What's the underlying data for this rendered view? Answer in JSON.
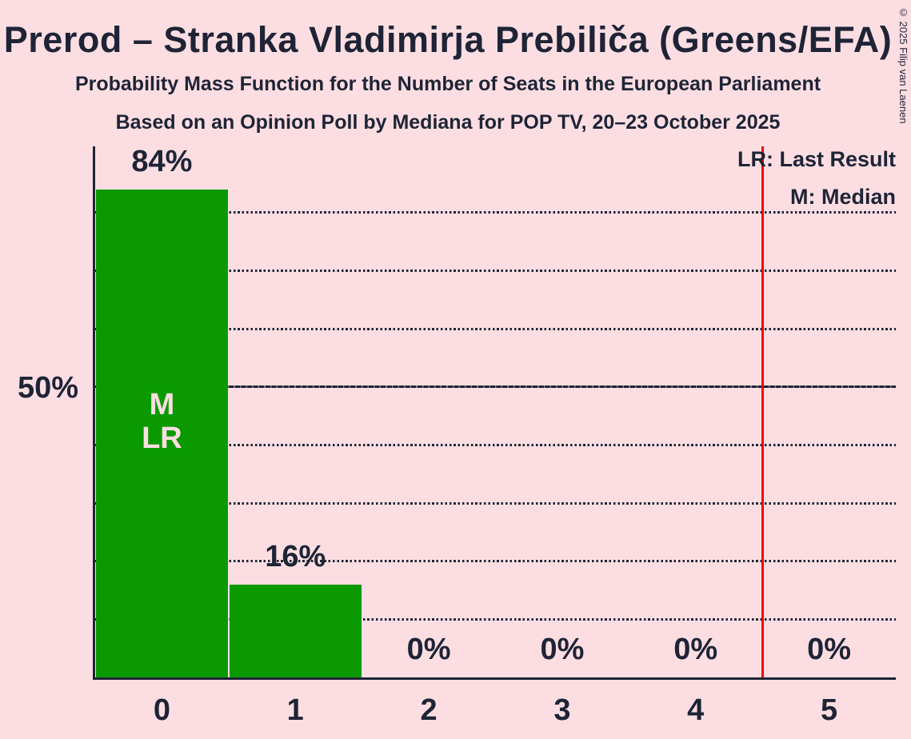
{
  "page": {
    "background_color": "#FCDEE2",
    "text_color": "#1E2436"
  },
  "header": {
    "title": "Prerod – Stranka Vladimirja Prebiliča (Greens/EFA)",
    "subtitle1": "Probability Mass Function for the Number of Seats in the European Parliament",
    "subtitle2": "Based on an Opinion Poll by Mediana for POP TV, 20–23 October 2025",
    "copyright": "© 2025 Filip van Laenen"
  },
  "legend": {
    "lr_label": "LR: Last Result",
    "m_label": "M: Median"
  },
  "chart_data": {
    "type": "bar",
    "title": "Probability Mass Function for the Number of Seats in the European Parliament",
    "categories": [
      "0",
      "1",
      "2",
      "3",
      "4",
      "5"
    ],
    "values": [
      84,
      16,
      0,
      0,
      0,
      0
    ],
    "bar_labels": [
      "84%",
      "16%",
      "0%",
      "0%",
      "0%",
      "0%"
    ],
    "bar_annotations": [
      [
        "M",
        "LR"
      ],
      [],
      [],
      [],
      [],
      []
    ],
    "y_axis_label": "50%",
    "y_axis_label_value": 50,
    "ylim": [
      0,
      91.4
    ],
    "gridlines_percent": [
      10,
      20,
      30,
      40,
      50,
      60,
      70,
      80
    ],
    "solid_gridline_percent": 50,
    "grid_on": true,
    "legend_position": "top-right",
    "red_line_x": 4.5,
    "bar_color": "#0A9A00",
    "red_line_color": "#F80000",
    "axis_color": "#1E2436",
    "annotation_text_color": "#FCDEE2"
  }
}
